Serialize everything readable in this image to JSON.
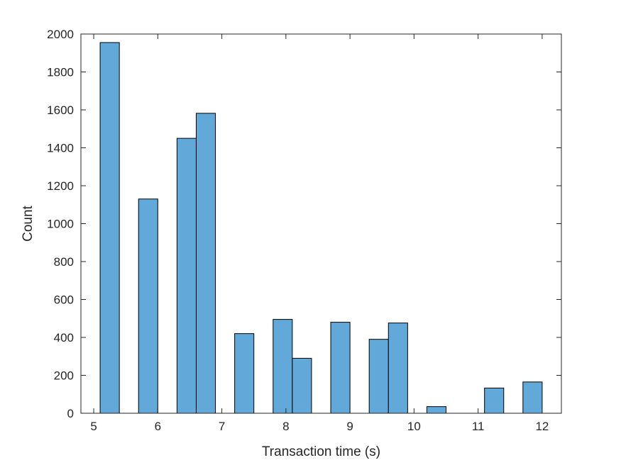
{
  "chart_data": {
    "type": "bar",
    "title": "",
    "xlabel": "Transaction time (s)",
    "ylabel": "Count",
    "xlim": [
      4.8,
      12.3
    ],
    "ylim": [
      0,
      2000
    ],
    "grid": false,
    "legend": "none",
    "bar_color": "#62a9d9",
    "edge_color": "#000000",
    "x_ticks": [
      5,
      6,
      7,
      8,
      9,
      10,
      11,
      12
    ],
    "y_ticks": [
      0,
      200,
      400,
      600,
      800,
      1000,
      1200,
      1400,
      1600,
      1800,
      2000
    ],
    "bins": [
      {
        "x0": 5.1,
        "x1": 5.4,
        "count": 1955
      },
      {
        "x0": 5.7,
        "x1": 6.0,
        "count": 1130
      },
      {
        "x0": 6.3,
        "x1": 6.6,
        "count": 1450
      },
      {
        "x0": 6.6,
        "x1": 6.9,
        "count": 1582
      },
      {
        "x0": 7.2,
        "x1": 7.5,
        "count": 420
      },
      {
        "x0": 7.8,
        "x1": 8.1,
        "count": 495
      },
      {
        "x0": 8.1,
        "x1": 8.4,
        "count": 290
      },
      {
        "x0": 8.7,
        "x1": 9.0,
        "count": 480
      },
      {
        "x0": 9.3,
        "x1": 9.6,
        "count": 390
      },
      {
        "x0": 9.6,
        "x1": 9.9,
        "count": 476
      },
      {
        "x0": 10.2,
        "x1": 10.5,
        "count": 35
      },
      {
        "x0": 11.1,
        "x1": 11.4,
        "count": 133
      },
      {
        "x0": 11.7,
        "x1": 12.0,
        "count": 165
      }
    ]
  }
}
